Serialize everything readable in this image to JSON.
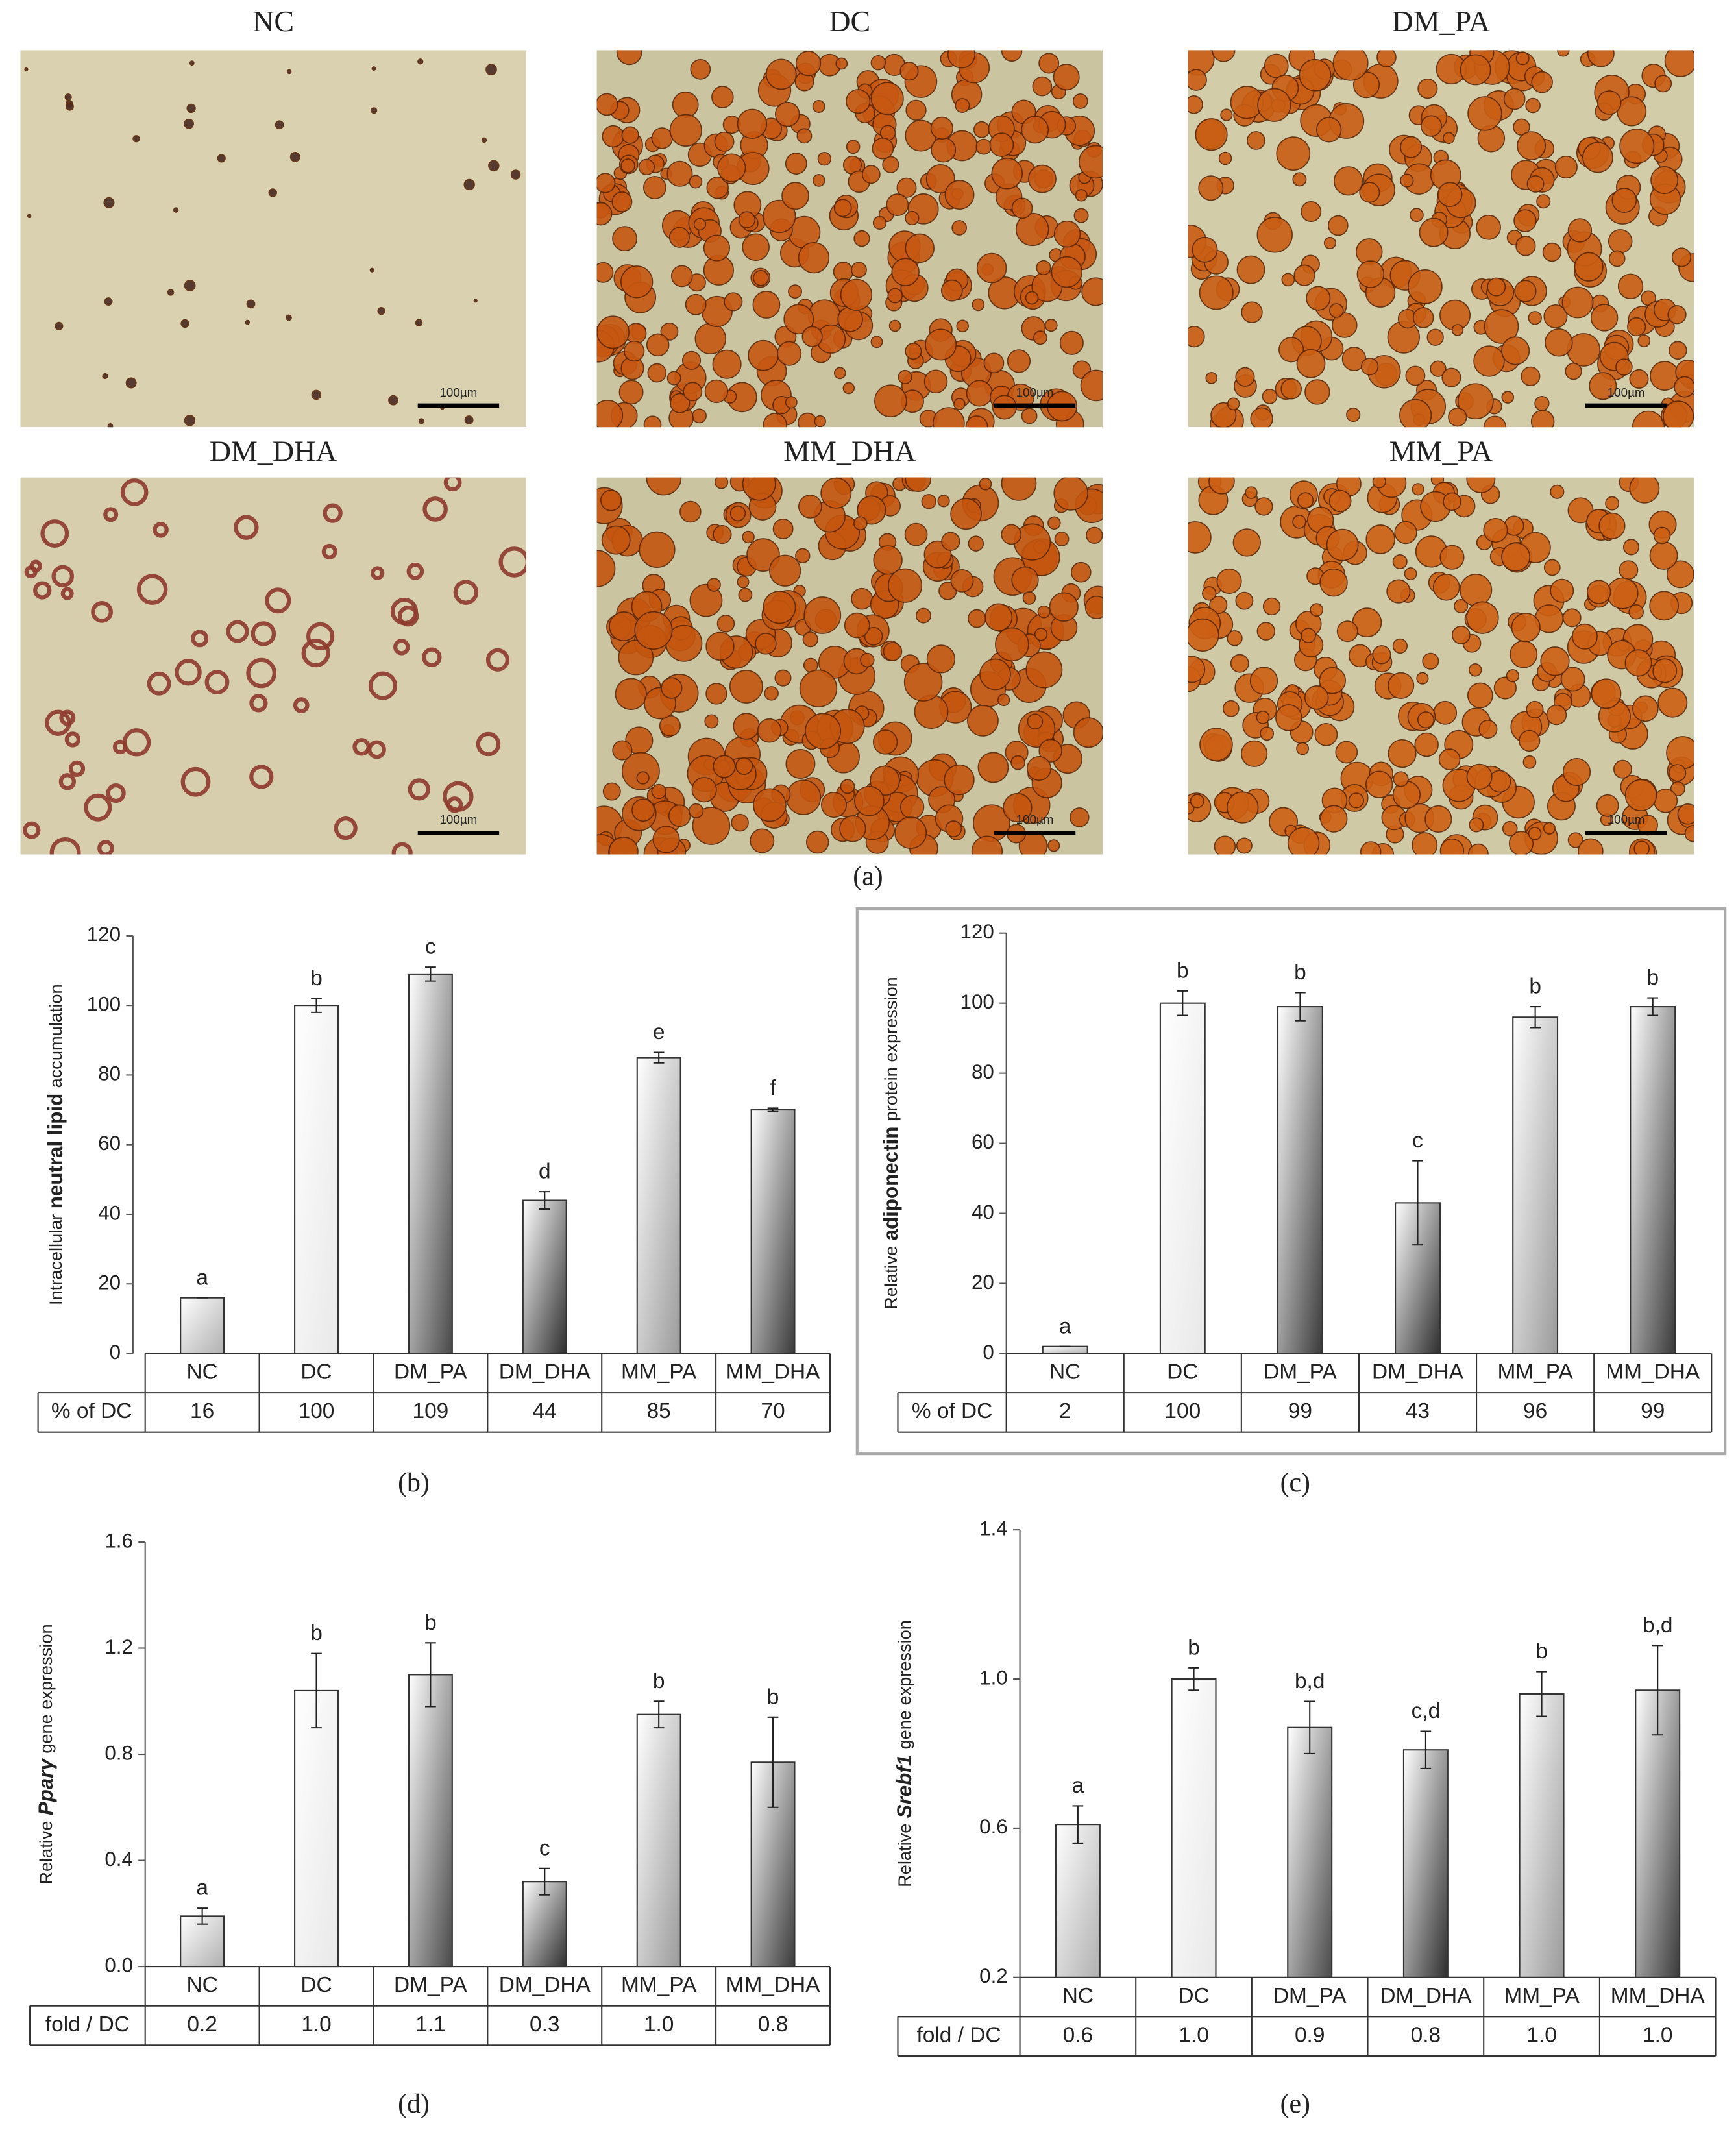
{
  "micrographs": {
    "labels": [
      "NC",
      "DC",
      "DM_PA",
      "DM_DHA",
      "MM_DHA",
      "MM_PA"
    ],
    "scale_bar": "100µm",
    "caption": "(a)"
  },
  "chart_data": [
    {
      "type": "bar",
      "categories": [
        "NC",
        "DC",
        "DM_PA",
        "DM_DHA",
        "MM_PA",
        "MM_DHA"
      ],
      "values": [
        16,
        100,
        109,
        44,
        85,
        70
      ],
      "errors": [
        0,
        2,
        2,
        2.5,
        1.5,
        0.5
      ],
      "labels": [
        "a",
        "b",
        "c",
        "d",
        "e",
        "f"
      ],
      "colors": [
        "#b0b0b0",
        "#e8e8e8",
        "#4a4a4a",
        "#2e2e2e",
        "#9a9a9a",
        "#3a3a3a"
      ],
      "ylim": [
        0,
        120
      ],
      "yticks": [
        0,
        20,
        40,
        60,
        80,
        100,
        120
      ],
      "ylabel": [
        "Intracellular",
        "neutral lipid",
        "accumulation"
      ],
      "table": {
        "label": "% of DC",
        "values": [
          "16",
          "100",
          "109",
          "44",
          "85",
          "70"
        ]
      },
      "caption": "(b)"
    },
    {
      "type": "bar",
      "categories": [
        "NC",
        "DC",
        "DM_PA",
        "DM_DHA",
        "MM_PA",
        "MM_DHA"
      ],
      "values": [
        2,
        100,
        99,
        43,
        96,
        99
      ],
      "errors": [
        0,
        3.5,
        4,
        12,
        3,
        2.5
      ],
      "labels": [
        "a",
        "b",
        "b",
        "c",
        "b",
        "b"
      ],
      "colors": [
        "#b0b0b0",
        "#e8e8e8",
        "#3a3a3a",
        "#2e2e2e",
        "#9a9a9a",
        "#3a3a3a"
      ],
      "ylim": [
        0,
        120
      ],
      "yticks": [
        0,
        20,
        40,
        60,
        80,
        100,
        120
      ],
      "ylabel": [
        "Relative",
        "adiponectin",
        "protein expression"
      ],
      "table": {
        "label": "% of DC",
        "values": [
          "2",
          "100",
          "99",
          "43",
          "96",
          "99"
        ]
      },
      "caption": "(c)"
    },
    {
      "type": "bar",
      "categories": [
        "NC",
        "DC",
        "DM_PA",
        "DM_DHA",
        "MM_PA",
        "MM_DHA"
      ],
      "values": [
        0.19,
        1.04,
        1.1,
        0.32,
        0.95,
        0.77
      ],
      "errors": [
        0.03,
        0.14,
        0.12,
        0.05,
        0.05,
        0.17
      ],
      "labels": [
        "a",
        "b",
        "b",
        "c",
        "b",
        "b"
      ],
      "colors": [
        "#b0b0b0",
        "#e8e8e8",
        "#4a4a4a",
        "#2e2e2e",
        "#9a9a9a",
        "#3a3a3a"
      ],
      "ylim": [
        0,
        1.6
      ],
      "yticks": [
        {
          "value": 0,
          "label": "0.0"
        },
        0.4,
        0.8,
        1.2,
        1.6
      ],
      "ylabel": [
        "Relative",
        "Pparγ",
        "gene expression"
      ],
      "table": {
        "label": "fold / DC",
        "values": [
          "0.2",
          "1.0",
          "1.1",
          "0.3",
          "1.0",
          "0.8"
        ]
      },
      "caption": "(d)"
    },
    {
      "type": "bar",
      "categories": [
        "NC",
        "DC",
        "DM_PA",
        "DM_DHA",
        "MM_PA",
        "MM_DHA"
      ],
      "values": [
        0.61,
        1.0,
        0.87,
        0.81,
        0.96,
        0.97
      ],
      "errors": [
        0.05,
        0.03,
        0.07,
        0.05,
        0.06,
        0.12
      ],
      "labels": [
        "a",
        "b",
        "b,d",
        "c,d",
        "b",
        "b,d"
      ],
      "colors": [
        "#b0b0b0",
        "#e8e8e8",
        "#4a4a4a",
        "#2e2e2e",
        "#9a9a9a",
        "#3a3a3a"
      ],
      "ylim": [
        0.2,
        1.4
      ],
      "yticks": [
        0.2,
        0.6,
        {
          "value": 1,
          "label": "1.0"
        },
        1.4
      ],
      "ylabel": [
        "Relative",
        "Srebf1",
        "gene expression"
      ],
      "table": {
        "label": "fold / DC",
        "values": [
          "0.6",
          "1.0",
          "0.9",
          "0.8",
          "1.0",
          "1.0"
        ]
      },
      "caption": "(e)"
    }
  ]
}
